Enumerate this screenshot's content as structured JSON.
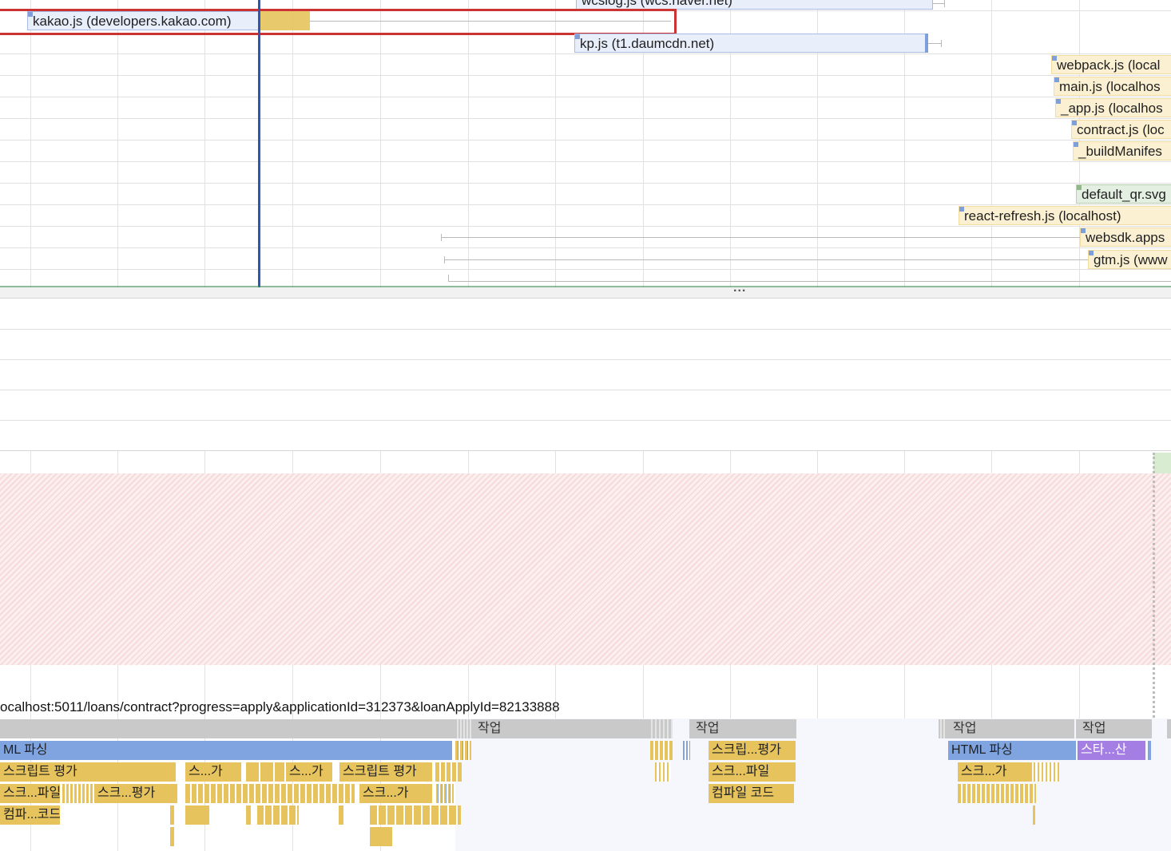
{
  "network": {
    "requests": [
      {
        "label": "wcslog.js (wcs.naver.net)",
        "kind": "blue",
        "selected": false
      },
      {
        "label": "kakao.js (developers.kakao.com)",
        "kind": "blue",
        "selected": true
      },
      {
        "label": "kp.js (t1.daumcdn.net)",
        "kind": "blue",
        "selected": false
      },
      {
        "label": "webpack.js (local",
        "kind": "js",
        "selected": false
      },
      {
        "label": "main.js (localhos",
        "kind": "js",
        "selected": false
      },
      {
        "label": "_app.js (localhos",
        "kind": "js",
        "selected": false
      },
      {
        "label": "contract.js (loc",
        "kind": "js",
        "selected": false
      },
      {
        "label": "_buildManifes",
        "kind": "js",
        "selected": false
      },
      {
        "label": "default_qr.svg",
        "kind": "img",
        "selected": false
      },
      {
        "label": "react-refresh.js (localhost)",
        "kind": "js",
        "selected": false
      },
      {
        "label": "websdk.apps",
        "kind": "js",
        "selected": false
      },
      {
        "label": "gtm.js (www",
        "kind": "js",
        "selected": false
      }
    ],
    "more_indicator": "..."
  },
  "main_thread": {
    "url_label": "ocalhost:5011/loans/contract?progress=apply&applicationId=312373&loanApplyId=82133888",
    "tasks": [
      {
        "label": ""
      },
      {
        "label": "작업"
      },
      {
        "label": "작업"
      },
      {
        "label": "작업"
      },
      {
        "label": "작업"
      }
    ],
    "flames": [
      {
        "label": "ML 파싱"
      },
      {
        "label": "스크립트 평가"
      },
      {
        "label": "스...가"
      },
      {
        "label": "스...가"
      },
      {
        "label": "스크립트 평가"
      },
      {
        "label": "스크...파일"
      },
      {
        "label": "스크...평가"
      },
      {
        "label": "스크...가"
      },
      {
        "label": "컴파...코드"
      },
      {
        "label": "스크립...평가"
      },
      {
        "label": "스크...파일"
      },
      {
        "label": "컴파일 코드"
      },
      {
        "label": "HTML 파싱"
      },
      {
        "label": "스타...산"
      },
      {
        "label": "스크...가"
      }
    ]
  },
  "colors": {
    "script": "#e6c35c",
    "parse_html": "#7fa4e0",
    "style": "#a47ee2",
    "task": "#c9c9c9",
    "selection": "#cc3333",
    "cursor": "#2f55b8",
    "long_task_hatch": "#f7dada"
  }
}
